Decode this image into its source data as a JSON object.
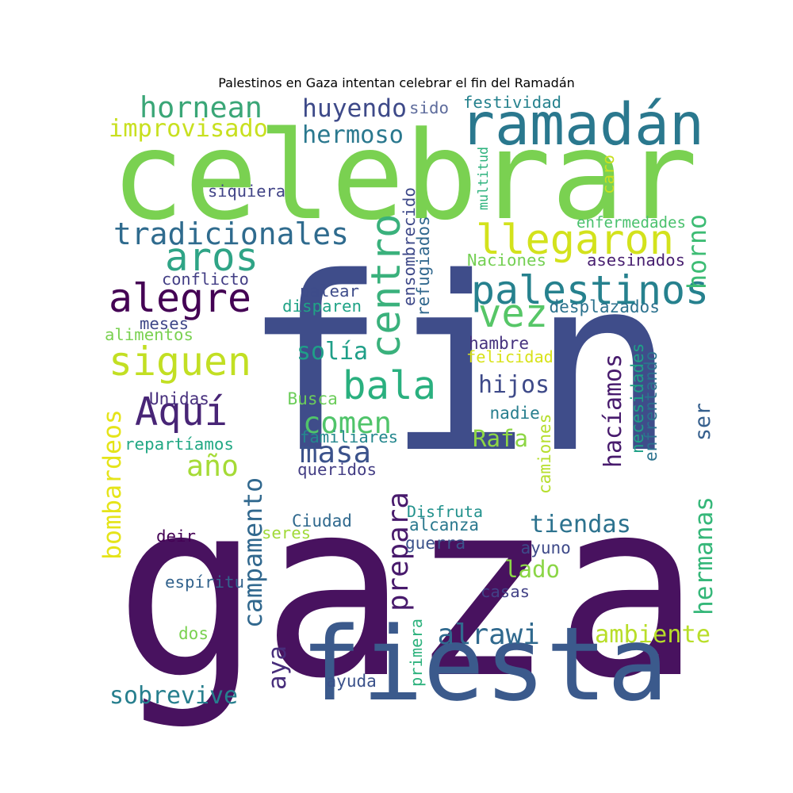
{
  "title": "Palestinos en Gaza intentan celebrar el fin del Ramadán",
  "words": [
    {
      "text": "fin",
      "color": "#3f4d8a"
    },
    {
      "text": "gaza",
      "color": "#48125f"
    },
    {
      "text": "celebrar",
      "color": "#7ad151"
    },
    {
      "text": "fiesta",
      "color": "#3b5a8c"
    },
    {
      "text": "ramadán",
      "color": "#2a788e"
    },
    {
      "text": "palestinos",
      "color": "#26818e"
    },
    {
      "text": "llegaron",
      "color": "#d3e21c"
    },
    {
      "text": "alegre",
      "color": "#440154"
    },
    {
      "text": "siguen",
      "color": "#c2df23"
    },
    {
      "text": "aros",
      "color": "#2fa486"
    },
    {
      "text": "hornean",
      "color": "#3aa677"
    },
    {
      "text": "tradicionales",
      "color": "#2f6b8e"
    },
    {
      "text": "centro",
      "color": "#3ab17c"
    },
    {
      "text": "vez",
      "color": "#56c667"
    },
    {
      "text": "bala",
      "color": "#2ab07f"
    },
    {
      "text": "Aquí",
      "color": "#482576"
    },
    {
      "text": "improvisado",
      "color": "#c8e020"
    },
    {
      "text": "huyendo",
      "color": "#3e4a89"
    },
    {
      "text": "hermoso",
      "color": "#2a788e"
    },
    {
      "text": "horno",
      "color": "#3dbc74"
    },
    {
      "text": "masa",
      "color": "#3b528b"
    },
    {
      "text": "comen",
      "color": "#50c46a"
    },
    {
      "text": "año",
      "color": "#a5db36"
    },
    {
      "text": "solía",
      "color": "#1f9f88"
    },
    {
      "text": "hijos",
      "color": "#3e4a89"
    },
    {
      "text": "Rafa",
      "color": "#8ed645"
    },
    {
      "text": "hacíamos",
      "color": "#481b6d"
    },
    {
      "text": "ser",
      "color": "#355f8d"
    },
    {
      "text": "prepara",
      "color": "#481a6c"
    },
    {
      "text": "tiendas",
      "color": "#2c728e"
    },
    {
      "text": "lado",
      "color": "#8bd646"
    },
    {
      "text": "hermanas",
      "color": "#35b779"
    },
    {
      "text": "alrawi",
      "color": "#30698e"
    },
    {
      "text": "ambiente",
      "color": "#b8de29"
    },
    {
      "text": "aya",
      "color": "#472d7b"
    },
    {
      "text": "campamento",
      "color": "#31688e"
    },
    {
      "text": "bombardeos",
      "color": "#e5e419"
    },
    {
      "text": "sobrevive",
      "color": "#277f8e"
    },
    {
      "text": "sido",
      "color": "#5e6c9c"
    },
    {
      "text": "festividad",
      "color": "#26828e"
    },
    {
      "text": "siquiera",
      "color": "#414487"
    },
    {
      "text": "multitud",
      "color": "#2db27d"
    },
    {
      "text": "caro",
      "color": "#c8e020"
    },
    {
      "text": "ensombrecido",
      "color": "#3e4989"
    },
    {
      "text": "refugiados",
      "color": "#31688e"
    },
    {
      "text": "enfermedades",
      "color": "#4ac16d"
    },
    {
      "text": "Naciones",
      "color": "#75d054"
    },
    {
      "text": "asesinados",
      "color": "#481f70"
    },
    {
      "text": "conflicto",
      "color": "#433e85"
    },
    {
      "text": "palear",
      "color": "#3e4c8a"
    },
    {
      "text": "disparen",
      "color": "#20a386"
    },
    {
      "text": "desplazados",
      "color": "#2c728e"
    },
    {
      "text": "meses",
      "color": "#3f4788"
    },
    {
      "text": "alimentos",
      "color": "#7ad151"
    },
    {
      "text": "hambre",
      "color": "#46327e"
    },
    {
      "text": "felicidad",
      "color": "#d8e219"
    },
    {
      "text": "necesidades",
      "color": "#1fa187"
    },
    {
      "text": "enfrentando",
      "color": "#2c738e"
    },
    {
      "text": "Unidas",
      "color": "#472f7d"
    },
    {
      "text": "Busca",
      "color": "#6ccd5a"
    },
    {
      "text": "nadie",
      "color": "#277e8e"
    },
    {
      "text": "familiares",
      "color": "#24878e"
    },
    {
      "text": "camiones",
      "color": "#b5de2b"
    },
    {
      "text": "repartíamos",
      "color": "#22a884"
    },
    {
      "text": "queridos",
      "color": "#433d84"
    },
    {
      "text": "Disfruta",
      "color": "#21918c"
    },
    {
      "text": "alcanza",
      "color": "#2a788e"
    },
    {
      "text": "Ciudad",
      "color": "#30698e"
    },
    {
      "text": "seres",
      "color": "#a0da39"
    },
    {
      "text": "deir",
      "color": "#440154"
    },
    {
      "text": "guerra",
      "color": "#3b528b"
    },
    {
      "text": "ayuno",
      "color": "#3e4a89"
    },
    {
      "text": "espíritu",
      "color": "#33638d"
    },
    {
      "text": "casas",
      "color": "#424186"
    },
    {
      "text": "dos",
      "color": "#7ad151"
    },
    {
      "text": "primera",
      "color": "#2db27d"
    },
    {
      "text": "ayuda",
      "color": "#3b528b"
    }
  ]
}
